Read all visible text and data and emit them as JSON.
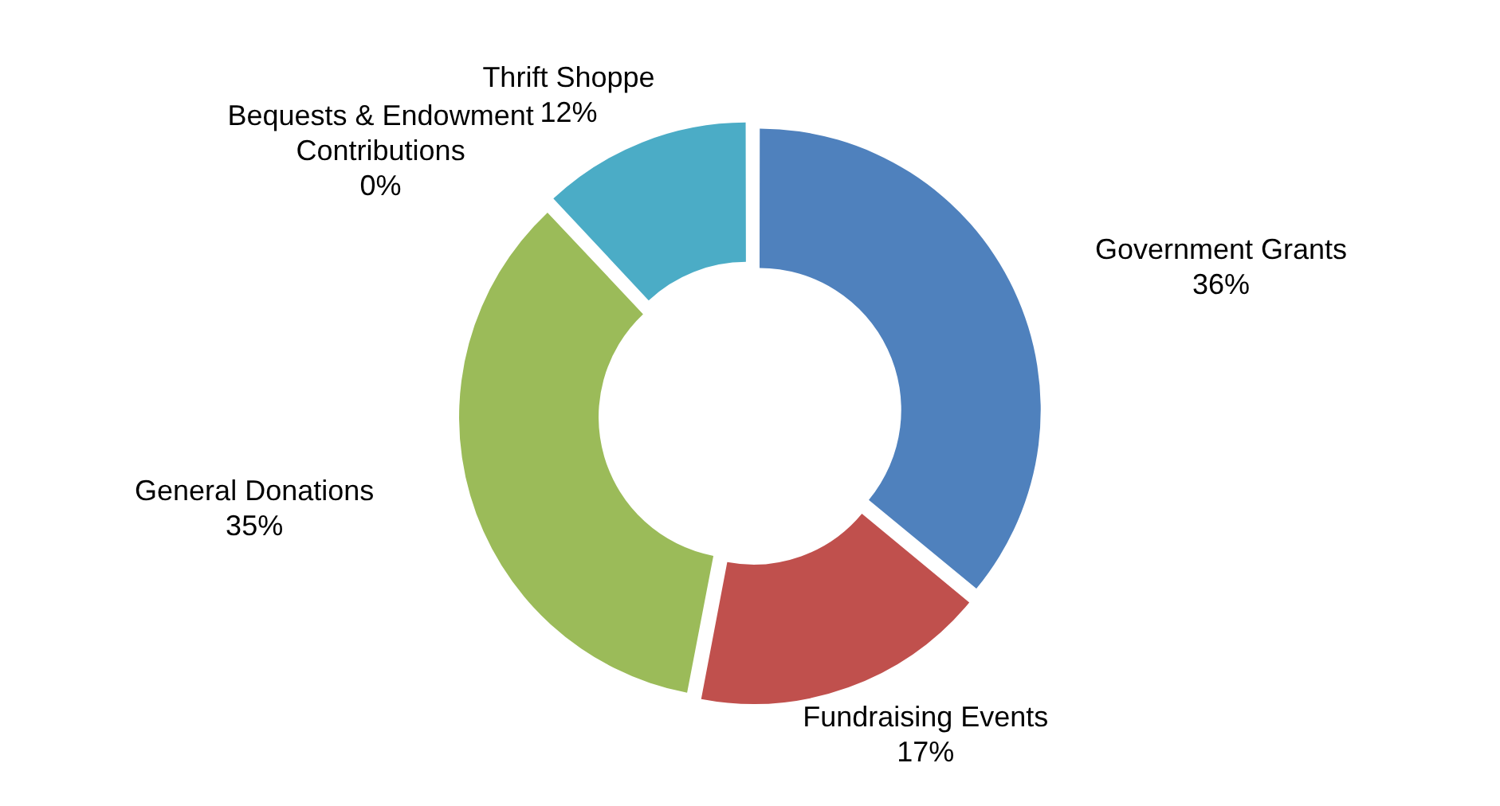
{
  "chart_data": {
    "type": "donut",
    "categories": [
      "Government Grants",
      "Fundraising Events",
      "General Donations",
      "Bequests & Endowment Contributions",
      "Thrift Shoppe"
    ],
    "values": [
      36,
      17,
      35,
      0,
      12
    ],
    "colors": [
      "#4f81bd",
      "#c0504d",
      "#9bbb59",
      "#8064a2",
      "#4bacc6"
    ],
    "value_labels": [
      "36%",
      "17%",
      "35%",
      "0%",
      "12%"
    ],
    "legend": false
  }
}
